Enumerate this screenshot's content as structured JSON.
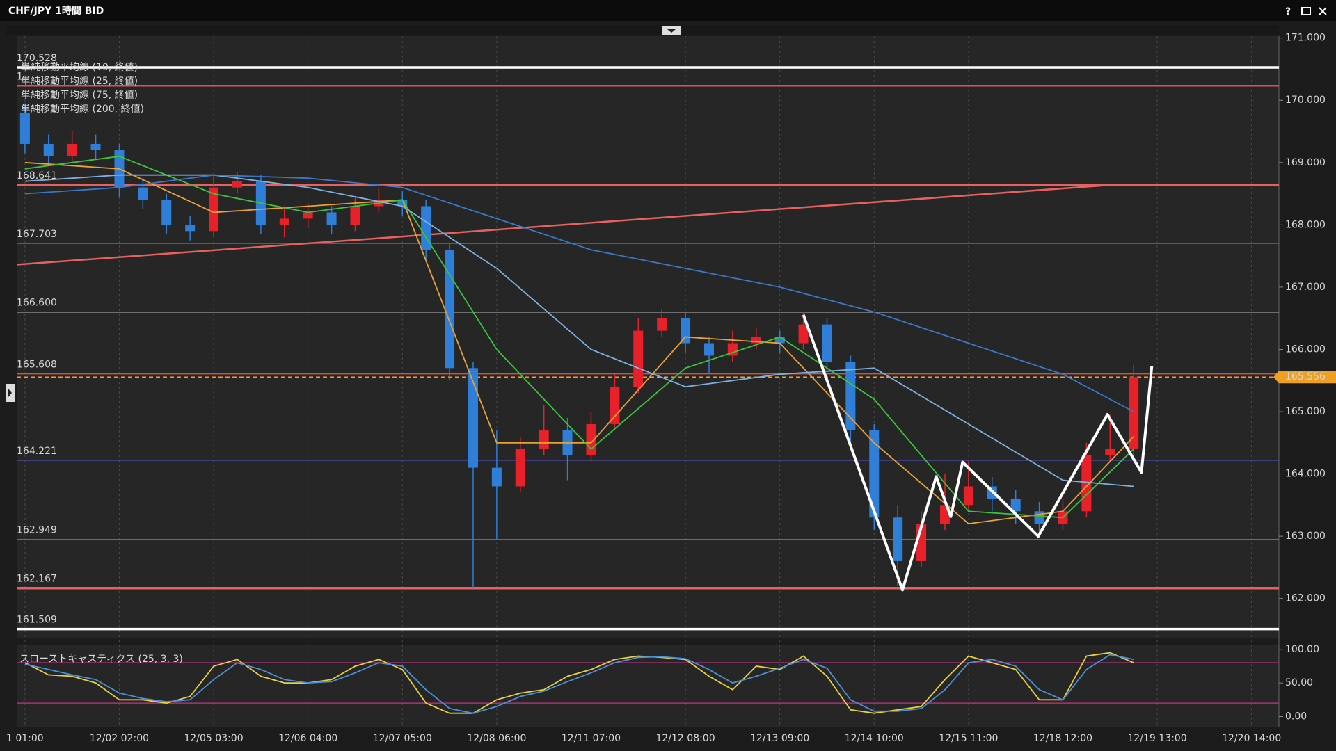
{
  "window": {
    "title": "CHF/JPY 1時間 BID",
    "help": "?"
  },
  "chart_data": [
    {
      "type": "candlestick",
      "colors": {
        "up": "#e8202a",
        "down": "#2f7fd8"
      },
      "xlim": [
        -0.35,
        53.16
      ],
      "ylim": [
        161.36,
        171.03
      ],
      "yticks": [
        {
          "value": 162,
          "label": "162.000"
        },
        {
          "value": 163,
          "label": "163.000"
        },
        {
          "value": 164,
          "label": "164.000"
        },
        {
          "value": 165,
          "label": "165.000"
        },
        {
          "value": 166,
          "label": "166.000"
        },
        {
          "value": 167,
          "label": "167.000"
        },
        {
          "value": 168,
          "label": "168.000"
        },
        {
          "value": 169,
          "label": "169.000"
        },
        {
          "value": 170,
          "label": "170.000"
        },
        {
          "value": 171,
          "label": "171.000"
        }
      ],
      "ohlc": [
        [
          169.8,
          169.95,
          169.15,
          169.3
        ],
        [
          169.3,
          169.45,
          168.95,
          169.1
        ],
        [
          169.1,
          169.5,
          169.0,
          169.3
        ],
        [
          169.3,
          169.45,
          169.05,
          169.2
        ],
        [
          169.2,
          169.3,
          168.45,
          168.6
        ],
        [
          168.6,
          168.75,
          168.25,
          168.4
        ],
        [
          168.4,
          168.5,
          167.85,
          168.0
        ],
        [
          168.0,
          168.15,
          167.75,
          167.9
        ],
        [
          167.9,
          168.8,
          167.8,
          168.6
        ],
        [
          168.6,
          168.85,
          168.5,
          168.7
        ],
        [
          168.7,
          168.8,
          167.85,
          168.0
        ],
        [
          168.0,
          168.3,
          167.8,
          168.1
        ],
        [
          168.1,
          168.35,
          167.95,
          168.2
        ],
        [
          168.2,
          168.3,
          167.85,
          168.0
        ],
        [
          168.0,
          168.45,
          167.9,
          168.3
        ],
        [
          168.3,
          168.6,
          168.2,
          168.4
        ],
        [
          168.4,
          168.55,
          168.15,
          168.3
        ],
        [
          168.3,
          168.4,
          167.45,
          167.6
        ],
        [
          167.6,
          167.7,
          165.5,
          165.7
        ],
        [
          165.7,
          165.8,
          162.17,
          164.1
        ],
        [
          164.1,
          164.7,
          162.95,
          163.8
        ],
        [
          163.8,
          164.6,
          163.7,
          164.4
        ],
        [
          164.4,
          165.1,
          164.3,
          164.7
        ],
        [
          164.7,
          164.9,
          163.9,
          164.3
        ],
        [
          164.3,
          165.0,
          164.2,
          164.8
        ],
        [
          164.8,
          165.6,
          164.7,
          165.4
        ],
        [
          165.4,
          166.5,
          165.3,
          166.3
        ],
        [
          166.3,
          166.65,
          166.2,
          166.5
        ],
        [
          166.5,
          166.6,
          165.95,
          166.1
        ],
        [
          166.1,
          166.2,
          165.6,
          165.9
        ],
        [
          165.9,
          166.3,
          165.8,
          166.1
        ],
        [
          166.1,
          166.35,
          166.0,
          166.2
        ],
        [
          166.2,
          166.3,
          165.95,
          166.1
        ],
        [
          166.1,
          166.6,
          166.0,
          166.4
        ],
        [
          166.4,
          166.5,
          165.65,
          165.8
        ],
        [
          165.8,
          165.9,
          164.5,
          164.7
        ],
        [
          164.7,
          164.8,
          163.1,
          163.3
        ],
        [
          163.3,
          163.5,
          162.2,
          162.6
        ],
        [
          162.6,
          163.4,
          162.5,
          163.2
        ],
        [
          163.2,
          164.0,
          163.1,
          163.5
        ],
        [
          163.5,
          164.2,
          163.4,
          163.8
        ],
        [
          163.8,
          163.95,
          163.4,
          163.6
        ],
        [
          163.6,
          163.75,
          163.2,
          163.4
        ],
        [
          163.4,
          163.55,
          163.05,
          163.2
        ],
        [
          163.2,
          163.6,
          163.1,
          163.4
        ],
        [
          163.4,
          164.5,
          163.3,
          164.3
        ],
        [
          164.3,
          164.95,
          164.2,
          164.4
        ],
        [
          164.4,
          165.75,
          164.3,
          165.556
        ]
      ],
      "last_price": 165.556,
      "last_price_color": "#f0a020",
      "levels": [
        {
          "value": 170.528,
          "color": "#ffffff",
          "style": "thick"
        },
        {
          "value": 170.234,
          "label": "1",
          "color": "#e05050",
          "style": "medium"
        },
        {
          "value": 168.641,
          "color": "#e86060",
          "style": "thick"
        },
        {
          "value": 167.703,
          "color": "#c04848",
          "style": "thin"
        },
        {
          "value": 166.6,
          "label": "166.600",
          "color": "#b8b8b8",
          "style": "thin"
        },
        {
          "value": 165.608,
          "color": "#d05050",
          "style": "thin"
        },
        {
          "value": 164.221,
          "color": "#5858d0",
          "style": "thin"
        },
        {
          "value": 162.949,
          "color": "#c04848",
          "style": "thin"
        },
        {
          "value": 162.167,
          "color": "#e86060",
          "style": "thick"
        },
        {
          "value": 161.509,
          "color": "#ffffff",
          "style": "thick"
        }
      ],
      "moving_averages": [
        {
          "name": "単純移動平均線 (10, 終値)",
          "color": "#e8a23a",
          "x": [
            0,
            4,
            8,
            12,
            16,
            20,
            24,
            28,
            32,
            36,
            40,
            44,
            47
          ],
          "values": [
            169.0,
            168.9,
            168.2,
            168.3,
            168.4,
            164.5,
            164.5,
            166.2,
            166.1,
            164.5,
            163.2,
            163.4,
            164.6
          ]
        },
        {
          "name": "単純移動平均線 (25, 終値)",
          "color": "#3cc43c",
          "x": [
            0,
            4,
            8,
            12,
            16,
            20,
            24,
            28,
            32,
            36,
            40,
            44,
            47
          ],
          "values": [
            168.9,
            169.1,
            168.5,
            168.2,
            168.4,
            166.0,
            164.4,
            165.7,
            166.2,
            165.2,
            163.4,
            163.3,
            164.4
          ]
        },
        {
          "name": "単純移動平均線 (75, 終値)",
          "color": "#7fb0e0",
          "x": [
            0,
            4,
            8,
            12,
            16,
            20,
            24,
            28,
            32,
            36,
            40,
            44,
            47
          ],
          "values": [
            168.7,
            168.8,
            168.8,
            168.6,
            168.3,
            167.3,
            166.0,
            165.4,
            165.6,
            165.7,
            164.8,
            163.9,
            163.8
          ]
        },
        {
          "name": "単純移動平均線 (200, 終値)",
          "color": "#3a78c8",
          "x": [
            0,
            4,
            8,
            12,
            16,
            20,
            24,
            28,
            32,
            36,
            40,
            44,
            47
          ],
          "values": [
            168.5,
            168.6,
            168.8,
            168.75,
            168.6,
            168.1,
            167.6,
            167.3,
            167.0,
            166.6,
            166.1,
            165.6,
            165.0
          ]
        }
      ],
      "trendline": {
        "color": "#e86060",
        "x": [
          -0.35,
          46.07
        ],
        "values": [
          167.362,
          168.641
        ]
      },
      "zigzag": {
        "color": "#ffffff",
        "x": [
          33.0,
          37.2,
          38.63,
          39.25,
          39.75,
          42.96,
          45.89,
          47.33,
          47.77
        ],
        "values": [
          166.555,
          162.137,
          163.957,
          163.314,
          164.189,
          162.999,
          164.955,
          164.025,
          165.734
        ]
      }
    },
    {
      "type": "line",
      "title": "スローストキャスティクス (25, 3, 3)",
      "xlim": [
        -0.35,
        53.16
      ],
      "ylim": [
        -15,
        106
      ],
      "yticks": [
        {
          "value": 100,
          "label": "100.00"
        },
        {
          "value": 50,
          "label": "50.00"
        },
        {
          "value": 0,
          "label": "0.00"
        }
      ],
      "xticks": [
        {
          "value": 0,
          "label": "1 01:00"
        },
        {
          "value": 4,
          "label": "12/02 02:00"
        },
        {
          "value": 8,
          "label": "12/05 03:00"
        },
        {
          "value": 12,
          "label": "12/06 04:00"
        },
        {
          "value": 16,
          "label": "12/07 05:00"
        },
        {
          "value": 20,
          "label": "12/08 06:00"
        },
        {
          "value": 24,
          "label": "12/11 07:00"
        },
        {
          "value": 28,
          "label": "12/12 08:00"
        },
        {
          "value": 32,
          "label": "12/13 09:00"
        },
        {
          "value": 36,
          "label": "12/14 10:00"
        },
        {
          "value": 40,
          "label": "12/15 11:00"
        },
        {
          "value": 44,
          "label": "12/18 12:00"
        },
        {
          "value": 48,
          "label": "12/19 13:00"
        },
        {
          "value": 52,
          "label": "12/20 14:00"
        }
      ],
      "levels": [
        80,
        20
      ],
      "level_color": "#b0307a",
      "series": [
        {
          "color": "#e8d040",
          "values": [
            80,
            62,
            60,
            50,
            25,
            25,
            20,
            30,
            75,
            85,
            60,
            50,
            50,
            55,
            75,
            85,
            70,
            20,
            5,
            5,
            25,
            35,
            40,
            60,
            70,
            85,
            90,
            88,
            85,
            60,
            40,
            75,
            70,
            90,
            60,
            10,
            5,
            10,
            15,
            55,
            90,
            80,
            70,
            25,
            25,
            90,
            95,
            80
          ]
        },
        {
          "color": "#4a90d8",
          "values": [
            78,
            70,
            62,
            55,
            35,
            27,
            22,
            25,
            55,
            80,
            70,
            55,
            50,
            52,
            65,
            80,
            75,
            40,
            12,
            5,
            15,
            30,
            38,
            52,
            65,
            80,
            88,
            89,
            86,
            70,
            50,
            60,
            72,
            85,
            72,
            25,
            8,
            8,
            12,
            40,
            80,
            85,
            75,
            40,
            25,
            70,
            92,
            85
          ]
        }
      ]
    }
  ]
}
